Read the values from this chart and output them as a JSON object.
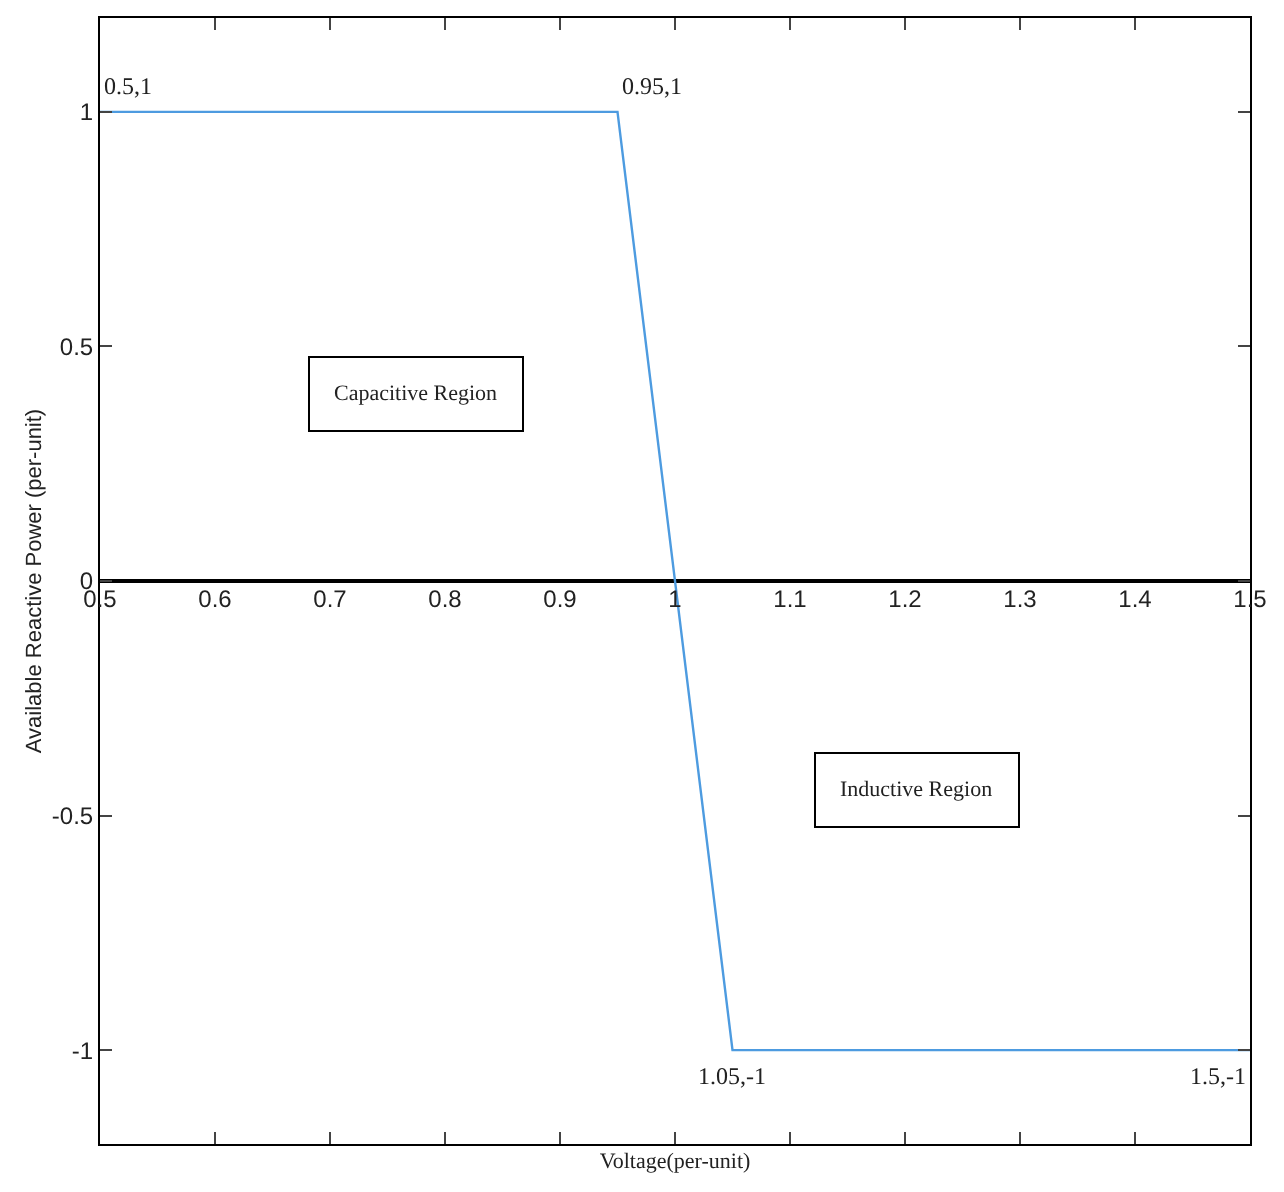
{
  "chart_data": {
    "type": "line",
    "xlabel": "Voltage(per-unit)",
    "ylabel": "Available Reactive Power (per-unit)",
    "x": [
      0.5,
      0.95,
      1.05,
      1.5
    ],
    "series": [
      {
        "color": "#4d9be0",
        "values": [
          1,
          1,
          -1,
          -1
        ]
      }
    ],
    "xlim": [
      0.5,
      1.5
    ],
    "xticks": [
      0.5,
      0.6,
      0.7,
      0.8,
      0.9,
      1,
      1.1,
      1.2,
      1.3,
      1.4,
      1.5
    ],
    "ylim": [
      -1.2,
      1.2
    ],
    "yticks": [
      -1,
      -0.5,
      0,
      0.5,
      1
    ],
    "marker": "none",
    "line_style": "solid",
    "annotations": [
      {
        "text": "0.5,1",
        "x": 0.5,
        "y": 1
      },
      {
        "text": "0.95,1",
        "x": 0.95,
        "y": 1
      },
      {
        "text": "1.05,-1",
        "x": 1.05,
        "y": -1
      },
      {
        "text": "1.5,-1",
        "x": 1.5,
        "y": -1
      },
      "Capacitive Region",
      "Inductive Region"
    ]
  }
}
